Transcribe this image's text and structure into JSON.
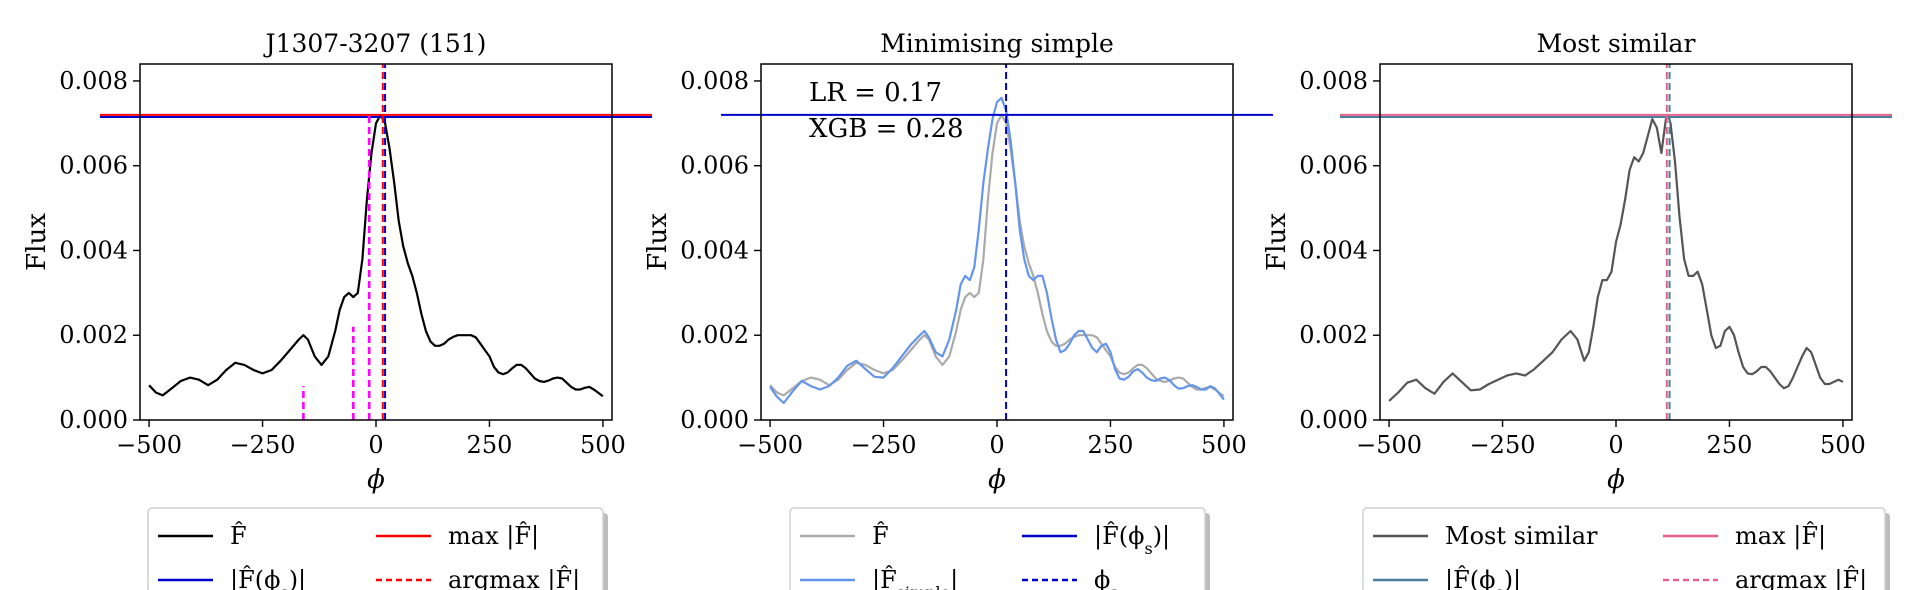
{
  "colors": {
    "black": "#000000",
    "red": "#ff0000",
    "blue": "#0000cc",
    "magenta": "#ff00ff",
    "gray": "#aaaaaa",
    "cornflower": "#6495ed",
    "dimgray": "#555555",
    "pink": "#e8608c",
    "steel": "#4a7ea0"
  },
  "chart_data": [
    {
      "type": "line",
      "title": "J1307-3207 (151)",
      "xlabel": "ϕ",
      "ylabel": "Flux",
      "xlim": [
        -520,
        520
      ],
      "ylim": [
        0,
        0.0084
      ],
      "xticks": [
        -500,
        -250,
        0,
        250,
        500
      ],
      "xtick_labels": [
        "−500",
        "−250",
        "0",
        "250",
        "500"
      ],
      "yticks": [
        0,
        0.002,
        0.004,
        0.006,
        0.008
      ],
      "ytick_labels": [
        "0.000",
        "0.002",
        "0.004",
        "0.006",
        "0.008"
      ],
      "grid": false,
      "series": [
        {
          "name": "F̂",
          "color": "black",
          "x": [
            -500,
            -485,
            -470,
            -450,
            -430,
            -410,
            -390,
            -370,
            -350,
            -330,
            -310,
            -290,
            -270,
            -250,
            -230,
            -210,
            -190,
            -170,
            -160,
            -150,
            -135,
            -120,
            -105,
            -90,
            -80,
            -70,
            -60,
            -50,
            -40,
            -30,
            -20,
            -10,
            0,
            10,
            20,
            30,
            40,
            50,
            60,
            70,
            80,
            90,
            100,
            110,
            120,
            130,
            140,
            150,
            160,
            170,
            180,
            190,
            200,
            210,
            220,
            230,
            240,
            250,
            260,
            270,
            280,
            290,
            300,
            310,
            320,
            330,
            340,
            350,
            360,
            370,
            380,
            390,
            400,
            410,
            420,
            430,
            440,
            450,
            460,
            470,
            480,
            490,
            500
          ],
          "y": [
            0.00082,
            0.00065,
            0.00058,
            0.00075,
            0.00092,
            0.001,
            0.00095,
            0.00082,
            0.00095,
            0.00118,
            0.00135,
            0.0013,
            0.00118,
            0.0011,
            0.00118,
            0.0014,
            0.00165,
            0.0019,
            0.002,
            0.0019,
            0.0015,
            0.0013,
            0.0015,
            0.0021,
            0.0026,
            0.0029,
            0.003,
            0.0029,
            0.003,
            0.0038,
            0.0052,
            0.0063,
            0.007,
            0.0072,
            0.007,
            0.0064,
            0.0056,
            0.0047,
            0.0041,
            0.0037,
            0.0034,
            0.003,
            0.0025,
            0.0021,
            0.00185,
            0.00175,
            0.00175,
            0.0018,
            0.0019,
            0.00196,
            0.002,
            0.002,
            0.002,
            0.002,
            0.00195,
            0.0018,
            0.00165,
            0.0015,
            0.00125,
            0.00112,
            0.00108,
            0.00112,
            0.00122,
            0.0013,
            0.0013,
            0.00122,
            0.0011,
            0.00098,
            0.00092,
            0.0009,
            0.00093,
            0.00098,
            0.001,
            0.00098,
            0.00088,
            0.00078,
            0.00072,
            0.00072,
            0.00076,
            0.00078,
            0.00072,
            0.00064,
            0.00056
          ],
          "style": "solid"
        }
      ],
      "hlines": [
        {
          "y": 0.0072,
          "color": "red",
          "style": "solid"
        },
        {
          "y": 0.00715,
          "color": "blue",
          "style": "solid"
        }
      ],
      "vlines": [
        {
          "x": 15,
          "ymax": 0.0084,
          "color": "red",
          "style": "dashed"
        },
        {
          "x": 20,
          "ymax": 0.0084,
          "color": "blue",
          "style": "dashed"
        },
        {
          "x": -160,
          "ymax": 0.0008,
          "color": "magenta",
          "style": "dashed"
        },
        {
          "x": -50,
          "ymax": 0.0022,
          "color": "magenta",
          "style": "dashed"
        },
        {
          "x": -15,
          "ymax": 0.0072,
          "color": "magenta",
          "style": "dashed"
        }
      ],
      "annotations": [],
      "legend": {
        "placement": "below",
        "items": [
          {
            "label_main": "F̂",
            "label_sub": "",
            "label_suffix": "",
            "color": "black",
            "style": "solid"
          },
          {
            "label_main": "max |F̂|",
            "label_sub": "",
            "label_suffix": "",
            "color": "red",
            "style": "solid"
          },
          {
            "label_main": "|F̂(ϕ",
            "label_sub": "s",
            "label_suffix": ")|",
            "color": "blue",
            "style": "solid"
          },
          {
            "label_main": "argmax |F̂|",
            "label_sub": "",
            "label_suffix": "",
            "color": "red",
            "style": "dashed"
          }
        ]
      }
    },
    {
      "type": "line",
      "title": "Minimising simple",
      "xlabel": "ϕ",
      "ylabel": "Flux",
      "xlim": [
        -520,
        520
      ],
      "ylim": [
        0,
        0.0084
      ],
      "xticks": [
        -500,
        -250,
        0,
        250,
        500
      ],
      "xtick_labels": [
        "−500",
        "−250",
        "0",
        "250",
        "500"
      ],
      "yticks": [
        0,
        0.002,
        0.004,
        0.006,
        0.008
      ],
      "ytick_labels": [
        "0.000",
        "0.002",
        "0.004",
        "0.006",
        "0.008"
      ],
      "grid": false,
      "series": [
        {
          "name": "F̂",
          "color": "gray",
          "x": [
            -500,
            -485,
            -470,
            -450,
            -430,
            -410,
            -390,
            -370,
            -350,
            -330,
            -310,
            -290,
            -270,
            -250,
            -230,
            -210,
            -190,
            -170,
            -160,
            -150,
            -135,
            -120,
            -105,
            -90,
            -80,
            -70,
            -60,
            -50,
            -40,
            -30,
            -20,
            -10,
            0,
            10,
            20,
            30,
            40,
            50,
            60,
            70,
            80,
            90,
            100,
            110,
            120,
            130,
            140,
            150,
            160,
            170,
            180,
            190,
            200,
            210,
            220,
            230,
            240,
            250,
            260,
            270,
            280,
            290,
            300,
            310,
            320,
            330,
            340,
            350,
            360,
            370,
            380,
            390,
            400,
            410,
            420,
            430,
            440,
            450,
            460,
            470,
            480,
            490,
            500
          ],
          "y": [
            0.00082,
            0.00065,
            0.00058,
            0.00075,
            0.00092,
            0.001,
            0.00095,
            0.00082,
            0.00095,
            0.00118,
            0.00135,
            0.0013,
            0.00118,
            0.0011,
            0.00118,
            0.0014,
            0.00165,
            0.0019,
            0.002,
            0.0019,
            0.0015,
            0.0013,
            0.0015,
            0.0021,
            0.0026,
            0.0029,
            0.003,
            0.0029,
            0.003,
            0.0038,
            0.0052,
            0.0063,
            0.007,
            0.0072,
            0.007,
            0.0064,
            0.0056,
            0.0047,
            0.0041,
            0.0037,
            0.0034,
            0.003,
            0.0025,
            0.0021,
            0.00185,
            0.00175,
            0.00175,
            0.0018,
            0.0019,
            0.00196,
            0.002,
            0.002,
            0.002,
            0.002,
            0.00195,
            0.0018,
            0.00165,
            0.0015,
            0.00125,
            0.00112,
            0.00108,
            0.00112,
            0.00122,
            0.0013,
            0.0013,
            0.00122,
            0.0011,
            0.00098,
            0.00092,
            0.0009,
            0.00093,
            0.00098,
            0.001,
            0.00098,
            0.00088,
            0.00078,
            0.00072,
            0.00072,
            0.00076,
            0.00078,
            0.00072,
            0.00064,
            0.00056
          ],
          "style": "solid"
        },
        {
          "name": "|F̂simple|",
          "color": "cornflower",
          "x": [
            -500,
            -485,
            -470,
            -450,
            -430,
            -410,
            -390,
            -370,
            -350,
            -330,
            -310,
            -290,
            -270,
            -250,
            -230,
            -210,
            -190,
            -170,
            -160,
            -150,
            -135,
            -120,
            -105,
            -90,
            -80,
            -70,
            -60,
            -50,
            -40,
            -30,
            -20,
            -10,
            0,
            10,
            20,
            30,
            40,
            50,
            60,
            70,
            80,
            90,
            100,
            110,
            120,
            130,
            140,
            150,
            160,
            170,
            180,
            190,
            200,
            210,
            220,
            230,
            240,
            250,
            260,
            270,
            280,
            290,
            300,
            310,
            320,
            330,
            340,
            350,
            360,
            370,
            380,
            390,
            400,
            410,
            420,
            430,
            440,
            450,
            460,
            470,
            480,
            490,
            500
          ],
          "y": [
            0.00078,
            0.00055,
            0.0004,
            0.00068,
            0.00092,
            0.0008,
            0.00072,
            0.0008,
            0.001,
            0.00128,
            0.0014,
            0.0012,
            0.00102,
            0.001,
            0.00122,
            0.0015,
            0.00178,
            0.002,
            0.0021,
            0.00195,
            0.0016,
            0.0015,
            0.0019,
            0.0026,
            0.0032,
            0.0034,
            0.0033,
            0.0036,
            0.0045,
            0.0056,
            0.0064,
            0.0071,
            0.0075,
            0.0076,
            0.0073,
            0.0066,
            0.0056,
            0.0045,
            0.0038,
            0.0034,
            0.0033,
            0.0034,
            0.0034,
            0.003,
            0.0024,
            0.0019,
            0.0016,
            0.00165,
            0.0018,
            0.002,
            0.0021,
            0.0021,
            0.0019,
            0.0017,
            0.0016,
            0.00175,
            0.0018,
            0.0016,
            0.0012,
            0.00098,
            0.00095,
            0.00102,
            0.00115,
            0.0012,
            0.00112,
            0.001,
            0.00094,
            0.00092,
            0.00098,
            0.001,
            0.00094,
            0.00082,
            0.00074,
            0.00075,
            0.0008,
            0.00082,
            0.00078,
            0.00072,
            0.00072,
            0.0008,
            0.00075,
            0.00062,
            0.00048
          ],
          "style": "solid"
        }
      ],
      "hlines": [
        {
          "y": 0.0072,
          "color": "blue",
          "style": "solid"
        }
      ],
      "vlines": [
        {
          "x": 20,
          "ymax": 0.0084,
          "color": "blue",
          "style": "dashed"
        }
      ],
      "annotations": [
        {
          "text": "LR = 0.17",
          "position": "top-left"
        },
        {
          "text": "XGB = 0.28",
          "position": "top-left"
        }
      ],
      "legend": {
        "placement": "below",
        "items": [
          {
            "label_main": "F̂",
            "label_sub": "",
            "label_suffix": "",
            "color": "gray",
            "style": "solid"
          },
          {
            "label_main": "|F̂(ϕ",
            "label_sub": "s",
            "label_suffix": ")|",
            "color": "blue",
            "style": "solid"
          },
          {
            "label_main": "|F̂",
            "label_sub": "simple",
            "label_suffix": "|",
            "color": "cornflower",
            "style": "solid"
          },
          {
            "label_main": "ϕ",
            "label_sub": "s",
            "label_suffix": "",
            "color": "blue",
            "style": "dashed"
          }
        ]
      }
    },
    {
      "type": "line",
      "title": "Most similar",
      "xlabel": "ϕ",
      "ylabel": "Flux",
      "xlim": [
        -520,
        520
      ],
      "ylim": [
        0,
        0.0084
      ],
      "xticks": [
        -500,
        -250,
        0,
        250,
        500
      ],
      "xtick_labels": [
        "−500",
        "−250",
        "0",
        "250",
        "500"
      ],
      "yticks": [
        0,
        0.002,
        0.004,
        0.006,
        0.008
      ],
      "ytick_labels": [
        "0.000",
        "0.002",
        "0.004",
        "0.006",
        "0.008"
      ],
      "grid": false,
      "series": [
        {
          "name": "Most similar",
          "color": "dimgray",
          "x": [
            -500,
            -480,
            -460,
            -440,
            -420,
            -400,
            -380,
            -360,
            -340,
            -320,
            -300,
            -280,
            -260,
            -240,
            -220,
            -200,
            -180,
            -160,
            -140,
            -120,
            -100,
            -85,
            -70,
            -60,
            -50,
            -40,
            -30,
            -20,
            -10,
            0,
            10,
            20,
            30,
            40,
            50,
            60,
            70,
            80,
            90,
            100,
            110,
            115,
            120,
            130,
            140,
            150,
            160,
            170,
            180,
            190,
            200,
            210,
            220,
            230,
            240,
            250,
            260,
            270,
            280,
            290,
            300,
            310,
            320,
            330,
            340,
            350,
            360,
            370,
            380,
            390,
            400,
            410,
            420,
            430,
            440,
            450,
            460,
            470,
            480,
            490,
            500
          ],
          "y": [
            0.00045,
            0.00065,
            0.00088,
            0.00095,
            0.00075,
            0.00062,
            0.0009,
            0.0011,
            0.0009,
            0.0007,
            0.00072,
            0.00085,
            0.00095,
            0.00105,
            0.0011,
            0.00105,
            0.0012,
            0.0014,
            0.0016,
            0.0019,
            0.0021,
            0.0019,
            0.0014,
            0.0016,
            0.0022,
            0.0029,
            0.0033,
            0.0033,
            0.0035,
            0.0042,
            0.0046,
            0.0052,
            0.0059,
            0.0062,
            0.0061,
            0.0063,
            0.0067,
            0.0071,
            0.0069,
            0.0063,
            0.0071,
            0.0072,
            0.007,
            0.0061,
            0.0048,
            0.0038,
            0.0034,
            0.0034,
            0.0035,
            0.0032,
            0.0026,
            0.002,
            0.0017,
            0.00175,
            0.0021,
            0.0022,
            0.002,
            0.0016,
            0.00125,
            0.0011,
            0.00108,
            0.00115,
            0.00125,
            0.00125,
            0.00115,
            0.001,
            0.00085,
            0.00075,
            0.0008,
            0.001,
            0.00125,
            0.0015,
            0.0017,
            0.0016,
            0.0013,
            0.001,
            0.00085,
            0.00085,
            0.0009,
            0.00095,
            0.0009
          ],
          "style": "solid"
        }
      ],
      "hlines": [
        {
          "y": 0.0072,
          "color": "pink",
          "style": "solid"
        },
        {
          "y": 0.00715,
          "color": "steel",
          "style": "solid"
        }
      ],
      "vlines": [
        {
          "x": 112,
          "ymax": 0.0084,
          "color": "pink",
          "style": "dashed"
        },
        {
          "x": 118,
          "ymax": 0.0084,
          "color": "steel",
          "style": "dashed"
        }
      ],
      "annotations": [],
      "legend": {
        "placement": "below",
        "items": [
          {
            "label_main": "Most similar",
            "label_sub": "",
            "label_suffix": "",
            "color": "dimgray",
            "style": "solid"
          },
          {
            "label_main": "max |F̂|",
            "label_sub": "",
            "label_suffix": "",
            "color": "pink",
            "style": "solid"
          },
          {
            "label_main": "|F̂(ϕ",
            "label_sub": "s",
            "label_suffix": ")|",
            "color": "steel",
            "style": "solid"
          },
          {
            "label_main": "argmax |F̂|",
            "label_sub": "",
            "label_suffix": "",
            "color": "pink",
            "style": "dashed"
          }
        ]
      }
    }
  ]
}
